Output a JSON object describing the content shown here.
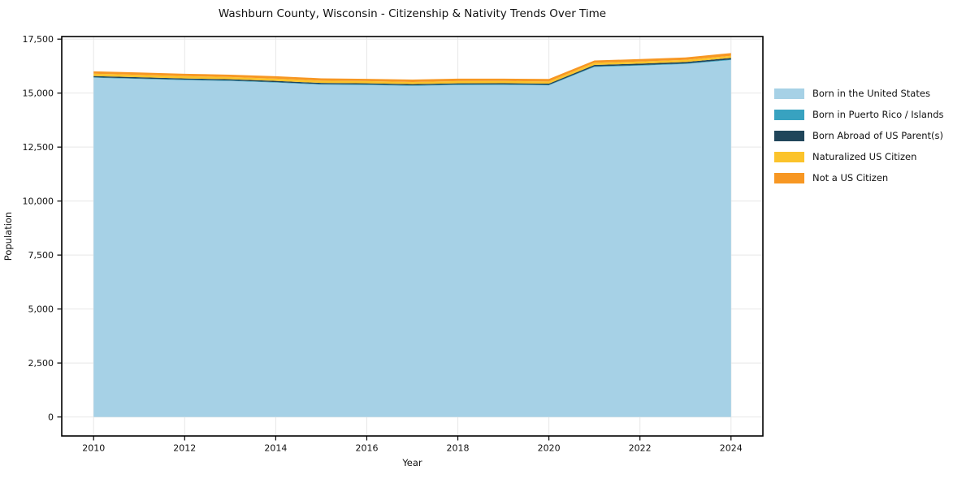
{
  "chart_data": {
    "type": "area",
    "stacked": true,
    "title": "Washburn County, Wisconsin - Citizenship & Nativity Trends Over Time",
    "xlabel": "Year",
    "ylabel": "Population",
    "x": [
      2010,
      2011,
      2012,
      2013,
      2014,
      2015,
      2016,
      2017,
      2018,
      2019,
      2020,
      2021,
      2022,
      2023,
      2024
    ],
    "series": [
      {
        "name": "Born in the United States",
        "color": "#a6d1e6",
        "values": [
          15710,
          15655,
          15600,
          15560,
          15485,
          15390,
          15375,
          15335,
          15375,
          15380,
          15360,
          16210,
          16270,
          16345,
          16530
        ]
      },
      {
        "name": "Born in Puerto Rico / Islands",
        "color": "#38a2c0",
        "values": [
          25,
          25,
          25,
          25,
          25,
          25,
          25,
          25,
          25,
          25,
          25,
          30,
          30,
          30,
          30
        ]
      },
      {
        "name": "Born Abroad of US Parent(s)",
        "color": "#20455a",
        "values": [
          55,
          55,
          55,
          55,
          55,
          55,
          55,
          55,
          55,
          55,
          55,
          65,
          65,
          65,
          70
        ]
      },
      {
        "name": "Naturalized US Citizen",
        "color": "#fbc32b",
        "values": [
          110,
          110,
          105,
          105,
          105,
          105,
          100,
          100,
          100,
          100,
          100,
          100,
          100,
          100,
          95
        ]
      },
      {
        "name": "Not a US Citizen",
        "color": "#f79723",
        "values": [
          110,
          110,
          110,
          110,
          110,
          110,
          105,
          110,
          115,
          110,
          115,
          105,
          110,
          110,
          130
        ]
      }
    ],
    "xticks": [
      2010,
      2012,
      2014,
      2016,
      2018,
      2020,
      2022,
      2024
    ],
    "xtick_labels": [
      "2010",
      "2012",
      "2014",
      "2016",
      "2018",
      "2020",
      "2022",
      "2024"
    ],
    "yticks": [
      0,
      2500,
      5000,
      7500,
      10000,
      12500,
      15000,
      17500
    ],
    "ytick_labels": [
      "0",
      "2,500",
      "5,000",
      "7,500",
      "10,000",
      "12,500",
      "15,000",
      "17,500"
    ],
    "xlim": [
      2009.3,
      2024.7
    ],
    "ylim": [
      -880,
      17620
    ],
    "grid": true,
    "grid_color": "#e7e7e7",
    "spine_color": "#000000",
    "legend_position": "right"
  }
}
